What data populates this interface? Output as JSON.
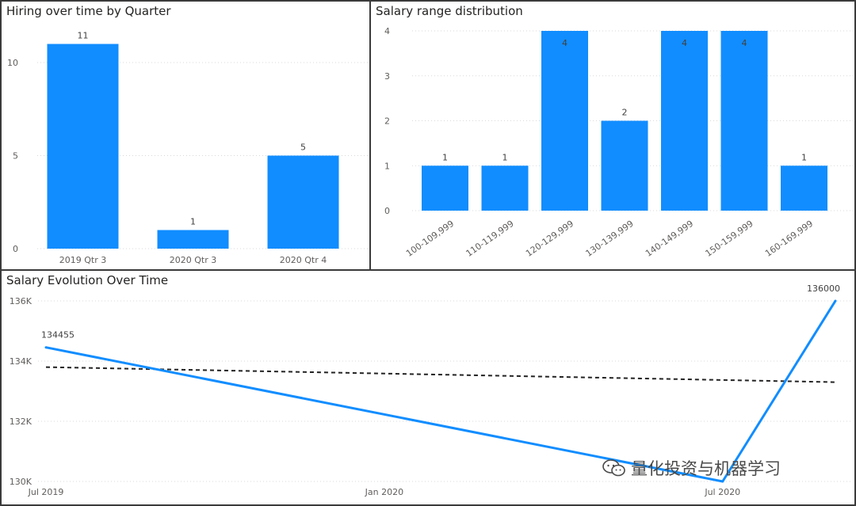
{
  "panels": {
    "hiring": {
      "title": "Hiring over time by Quarter"
    },
    "salary_range": {
      "title": "Salary range distribution"
    },
    "salary_evolution": {
      "title": "Salary Evolution Over Time"
    }
  },
  "watermark": {
    "text": "量化投资与机器学习",
    "icon": "wechat-icon"
  },
  "colors": {
    "bar": "#118DFF",
    "line": "#118DFF",
    "trend": "#222222",
    "grid": "#d9d9d9"
  },
  "chart_data": [
    {
      "type": "bar",
      "title": "Hiring over time by Quarter",
      "categories": [
        "2019 Qtr 3",
        "2020 Qtr 3",
        "2020 Qtr 4"
      ],
      "values": [
        11,
        1,
        5
      ],
      "data_labels": [
        "11",
        "1",
        "5"
      ],
      "ylim": [
        0,
        12
      ],
      "yticks": [
        0,
        5,
        10
      ],
      "ytick_labels": [
        "0",
        "5",
        "10"
      ],
      "grid": true
    },
    {
      "type": "bar",
      "title": "Salary range distribution",
      "categories": [
        "100-109,999",
        "110-119,999",
        "120-129,999",
        "130-139,999",
        "140-149,999",
        "150-159,999",
        "160-169,999"
      ],
      "values": [
        1,
        1,
        4,
        2,
        4,
        4,
        1
      ],
      "data_labels": [
        "1",
        "1",
        "4",
        "2",
        "4",
        "4",
        "1"
      ],
      "ylim": [
        0,
        4
      ],
      "yticks": [
        0,
        1,
        2,
        3,
        4
      ],
      "ytick_labels": [
        "0",
        "1",
        "2",
        "3",
        "4"
      ],
      "grid": true
    },
    {
      "type": "line",
      "title": "Salary Evolution Over Time",
      "x": [
        "2019-07",
        "2020-07",
        "2020-09"
      ],
      "xticks": [
        "2019-07",
        "2020-01",
        "2020-07"
      ],
      "xtick_labels": [
        "Jul 2019",
        "Jan 2020",
        "Jul 2020"
      ],
      "xlim": [
        "2019-07",
        "2020-09"
      ],
      "series": [
        {
          "values": [
            134455,
            130000,
            136000
          ]
        }
      ],
      "data_labels": [
        {
          "x": "2019-07",
          "text": "134455"
        },
        {
          "x": "2020-09",
          "text": "136000"
        }
      ],
      "trend_line": {
        "start": 133800,
        "end": 133300
      },
      "ylim": [
        130000,
        136000
      ],
      "yticks": [
        130000,
        132000,
        134000,
        136000
      ],
      "ytick_labels": [
        "130K",
        "132K",
        "134K",
        "136K"
      ],
      "grid": true
    }
  ]
}
